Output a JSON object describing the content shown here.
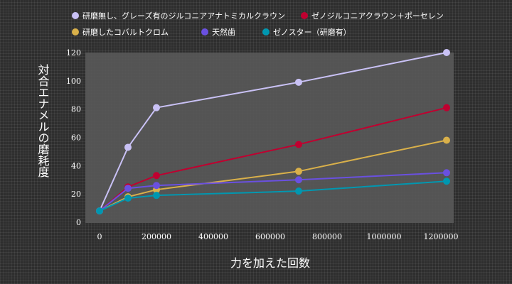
{
  "chart_data": {
    "type": "line",
    "xlabel": "力を加えた回数",
    "ylabel": "対合エナメルの磨耗度",
    "xlim": [
      0,
      1250000
    ],
    "ylim": [
      0,
      120
    ],
    "x_ticks": [
      0,
      200000,
      400000,
      600000,
      800000,
      1000000,
      1200000
    ],
    "y_ticks": [
      0,
      20,
      40,
      60,
      80,
      100,
      120
    ],
    "grid": false,
    "legend_position": "top",
    "series": [
      {
        "name": "研磨無し、グレーズ有のジルコニアアナトミカルクラウン",
        "color": "#c9c1f5",
        "x": [
          0,
          100000,
          200000,
          700000,
          1220000
        ],
        "y": [
          8,
          53,
          81,
          99,
          120
        ]
      },
      {
        "name": "ゼノジルコニアクラウン＋ポーセレン",
        "color": "#c00030",
        "x": [
          0,
          100000,
          200000,
          700000,
          1220000
        ],
        "y": [
          8,
          25,
          33,
          55,
          81
        ]
      },
      {
        "name": "研磨したコバルトクロム",
        "color": "#d9b04a",
        "x": [
          0,
          100000,
          200000,
          700000,
          1220000
        ],
        "y": [
          8,
          18,
          23,
          36,
          58
        ]
      },
      {
        "name": "天然歯",
        "color": "#6a50e0",
        "x": [
          0,
          100000,
          200000,
          700000,
          1220000
        ],
        "y": [
          8,
          24,
          26,
          30,
          35
        ]
      },
      {
        "name": "ゼノスター（研磨有）",
        "color": "#0097b0",
        "x": [
          0,
          100000,
          200000,
          700000,
          1220000
        ],
        "y": [
          8,
          17,
          19,
          22,
          29
        ]
      }
    ]
  }
}
